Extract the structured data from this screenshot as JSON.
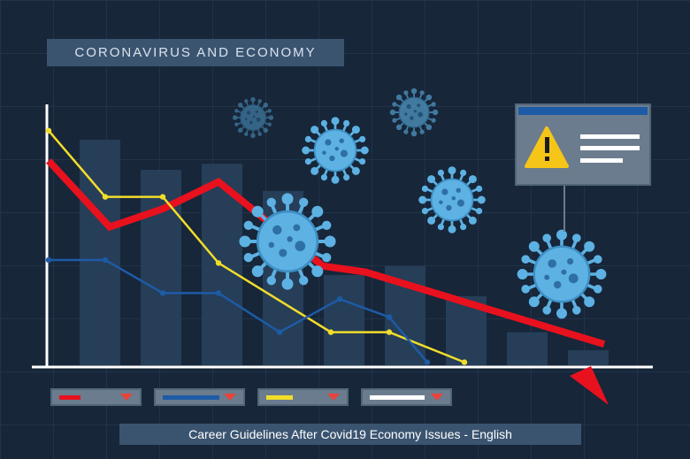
{
  "title": "CORONAVIRUS AND ECONOMY",
  "caption": "Career Guidelines After Covid19 Economy Issues - English",
  "colors": {
    "background": "#172639",
    "bars": "#263e58",
    "red_line": "#e8111e",
    "yellow_line": "#f2dd2a",
    "blue_line": "#1d5ba6",
    "virus": "#5db1e3",
    "warning": "#f5c518"
  },
  "legend": [
    {
      "color": "#e8111e"
    },
    {
      "color": "#1d5ba6"
    },
    {
      "color": "#f2dd2a"
    },
    {
      "color": "#ffffff"
    }
  ],
  "chart_data": {
    "type": "bar",
    "bars": [
      7.5,
      6.5,
      6.7,
      5.8,
      3.0,
      3.3,
      2.3,
      1.1,
      0.5
    ],
    "series": [
      {
        "color": "#e8111e",
        "values": [
          6.8,
          4.6,
          5.2,
          6.1,
          3.3,
          3.1,
          0.7
        ]
      },
      {
        "color": "#f2dd2a",
        "values": [
          7.8,
          5.6,
          5.6,
          3.4,
          1.1,
          1.1,
          0.1
        ]
      },
      {
        "color": "#1d5ba6",
        "values": [
          3.5,
          3.5,
          2.4,
          2.4,
          1.1,
          2.2,
          1.6,
          0.1
        ]
      }
    ],
    "icons": [
      "virus-icon",
      "warning-icon"
    ]
  }
}
